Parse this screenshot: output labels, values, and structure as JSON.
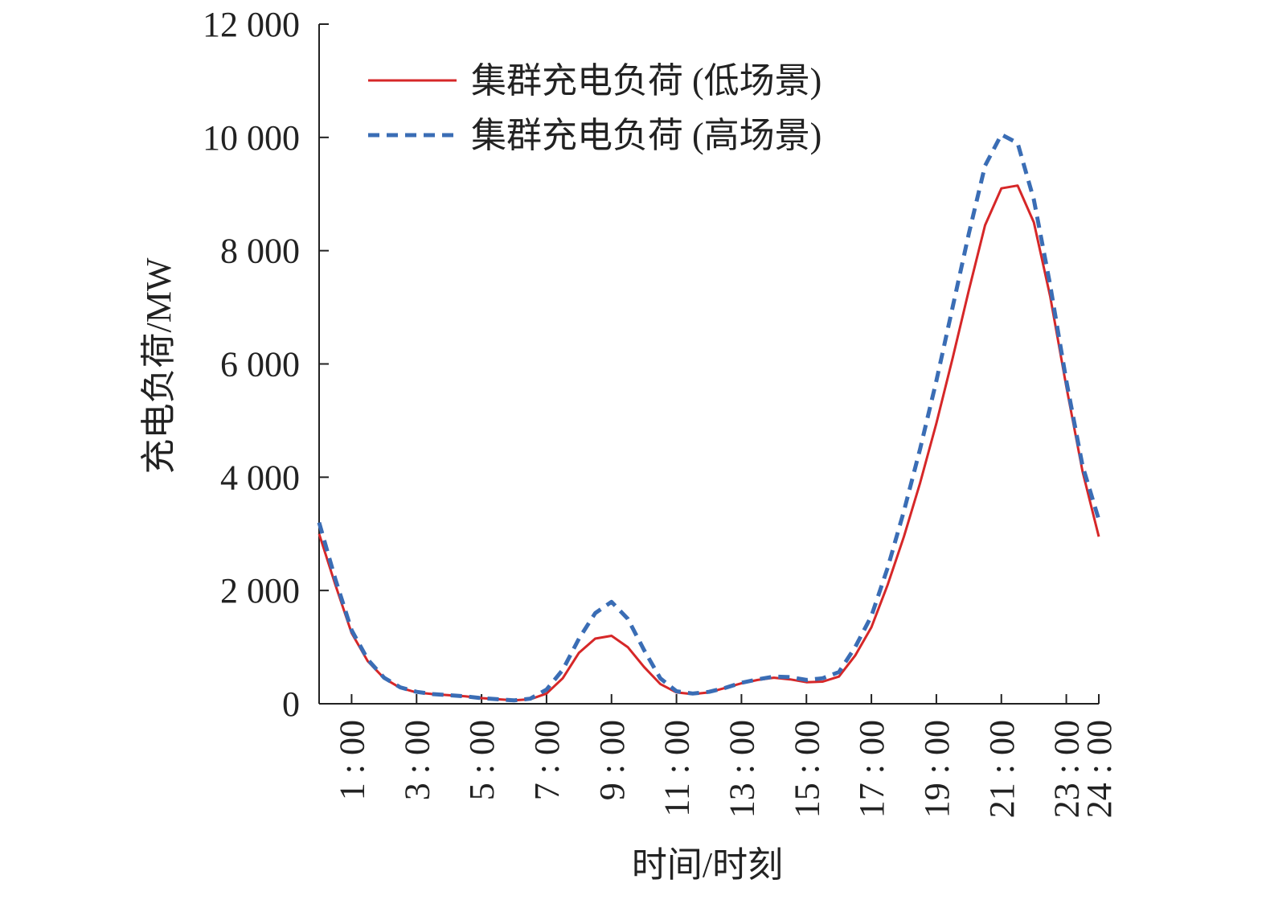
{
  "chart_data": {
    "type": "line",
    "xlabel": "时间/时刻",
    "ylabel": "充电负荷/MW",
    "xlim": [
      0,
      24
    ],
    "ylim": [
      0,
      12000
    ],
    "x_tick_values": [
      1,
      3,
      5,
      7,
      9,
      11,
      13,
      15,
      17,
      19,
      21,
      23,
      24
    ],
    "x_tick_labels": [
      "1 : 00",
      "3 : 00",
      "5 : 00",
      "7 : 00",
      "9 : 00",
      "11 : 00",
      "13 : 00",
      "15 : 00",
      "17 : 00",
      "19 : 00",
      "21 : 00",
      "23 : 00",
      "24 : 00"
    ],
    "y_ticks": [
      0,
      2000,
      4000,
      6000,
      8000,
      10000,
      12000
    ],
    "y_tick_labels": [
      "0",
      "2 000",
      "4 000",
      "6 000",
      "8 000",
      "10 000",
      "12 000"
    ],
    "grid": false,
    "legend_position": "top-center",
    "series": [
      {
        "name": "集群充电负荷 (低场景)",
        "color": "#d62728",
        "dash": "solid",
        "x": [
          0,
          0.5,
          1,
          1.5,
          2,
          2.5,
          3,
          3.5,
          4,
          4.5,
          5,
          5.5,
          6,
          6.5,
          7,
          7.5,
          8,
          8.5,
          9,
          9.5,
          10,
          10.5,
          11,
          11.5,
          12,
          12.5,
          13,
          13.5,
          14,
          14.5,
          15,
          15.5,
          16,
          16.5,
          17,
          17.5,
          18,
          18.5,
          19,
          19.5,
          20,
          20.5,
          21,
          21.5,
          22,
          22.5,
          23,
          23.5,
          24
        ],
        "y": [
          3000,
          2100,
          1250,
          750,
          450,
          280,
          200,
          170,
          150,
          130,
          100,
          80,
          60,
          80,
          180,
          450,
          900,
          1150,
          1200,
          1000,
          650,
          350,
          200,
          170,
          200,
          280,
          360,
          420,
          460,
          430,
          380,
          390,
          480,
          850,
          1350,
          2100,
          2950,
          3900,
          4950,
          6100,
          7300,
          8450,
          9100,
          9150,
          8500,
          7200,
          5600,
          4100,
          2950
        ]
      },
      {
        "name": "集群充电负荷 (高场景)",
        "color": "#3a6db5",
        "dash": "dashed",
        "x": [
          0,
          0.5,
          1,
          1.5,
          2,
          2.5,
          3,
          3.5,
          4,
          4.5,
          5,
          5.5,
          6,
          6.5,
          7,
          7.5,
          8,
          8.5,
          9,
          9.5,
          10,
          10.5,
          11,
          11.5,
          12,
          12.5,
          13,
          13.5,
          14,
          14.5,
          15,
          15.5,
          16,
          16.5,
          17,
          17.5,
          18,
          18.5,
          19,
          19.5,
          20,
          20.5,
          21,
          21.5,
          22,
          22.5,
          23,
          23.5,
          24
        ],
        "y": [
          3200,
          2200,
          1300,
          780,
          460,
          290,
          210,
          170,
          150,
          130,
          100,
          80,
          60,
          90,
          250,
          600,
          1150,
          1600,
          1800,
          1500,
          950,
          450,
          220,
          180,
          210,
          280,
          370,
          430,
          480,
          470,
          420,
          450,
          560,
          1000,
          1550,
          2400,
          3400,
          4500,
          5700,
          7000,
          8300,
          9500,
          10050,
          9900,
          8900,
          7400,
          5700,
          4200,
          3250
        ]
      }
    ]
  }
}
